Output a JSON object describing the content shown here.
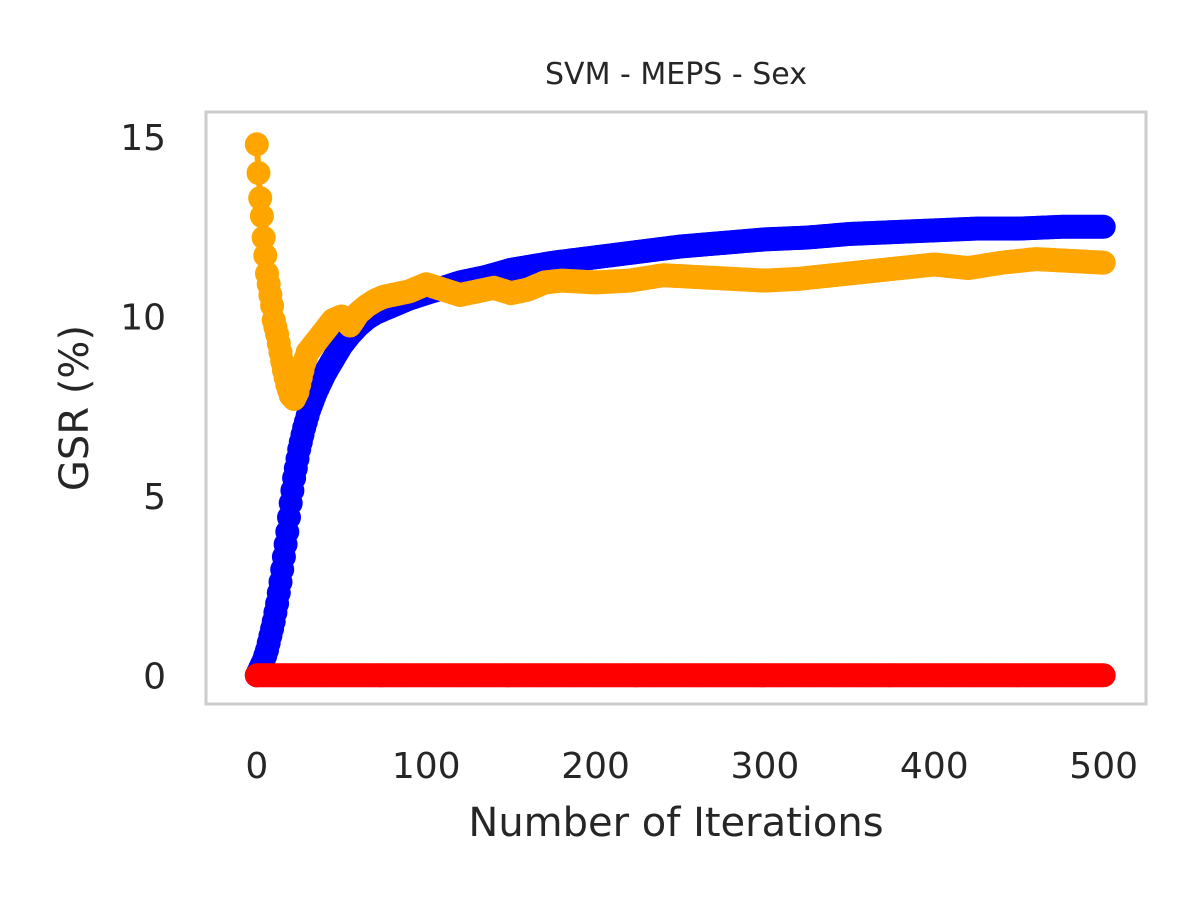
{
  "chart_data": {
    "type": "line",
    "title": "SVM - MEPS - Sex",
    "xlabel": "Number of Iterations",
    "ylabel": "GSR (%)",
    "xlim": [
      -30,
      525
    ],
    "ylim": [
      -0.8,
      15.7
    ],
    "xticks": [
      0,
      100,
      200,
      300,
      400,
      500
    ],
    "yticks": [
      0,
      5,
      10,
      15
    ],
    "xtick_labels": [
      "0",
      "100",
      "200",
      "300",
      "400",
      "500"
    ],
    "ytick_labels": [
      "0",
      "5",
      "10",
      "15"
    ],
    "grid": false,
    "legend": "none",
    "series": [
      {
        "color": "#0000ff",
        "x": [
          0,
          2,
          4,
          6,
          8,
          10,
          12,
          14,
          16,
          18,
          20,
          22,
          25,
          28,
          31,
          35,
          40,
          45,
          50,
          55,
          60,
          65,
          70,
          80,
          90,
          100,
          110,
          120,
          135,
          150,
          175,
          200,
          225,
          250,
          275,
          300,
          325,
          350,
          375,
          400,
          425,
          450,
          475,
          500
        ],
        "y": [
          0.0,
          0.2,
          0.4,
          0.7,
          1.1,
          1.5,
          2.0,
          2.6,
          3.3,
          4.0,
          4.8,
          5.5,
          6.3,
          6.9,
          7.4,
          7.9,
          8.4,
          8.8,
          9.2,
          9.5,
          9.75,
          9.95,
          10.1,
          10.3,
          10.5,
          10.65,
          10.8,
          10.95,
          11.1,
          11.3,
          11.5,
          11.65,
          11.8,
          11.95,
          12.05,
          12.15,
          12.2,
          12.3,
          12.35,
          12.4,
          12.45,
          12.45,
          12.5,
          12.5
        ]
      },
      {
        "color": "#ffa500",
        "x": [
          0,
          1,
          2,
          3,
          4,
          5,
          6,
          7,
          8,
          9,
          10,
          12,
          14,
          16,
          18,
          20,
          22,
          24,
          26,
          28,
          30,
          35,
          40,
          45,
          50,
          55,
          60,
          65,
          70,
          75,
          80,
          90,
          100,
          110,
          120,
          130,
          140,
          150,
          160,
          170,
          180,
          200,
          220,
          240,
          260,
          280,
          300,
          320,
          340,
          360,
          380,
          400,
          420,
          440,
          460,
          480,
          500
        ],
        "y": [
          14.8,
          14.0,
          13.3,
          12.8,
          12.2,
          11.7,
          11.2,
          10.9,
          10.6,
          10.3,
          9.9,
          9.5,
          9.0,
          8.5,
          8.1,
          7.8,
          7.7,
          7.9,
          8.3,
          8.7,
          9.0,
          9.3,
          9.6,
          9.9,
          10.0,
          9.75,
          10.1,
          10.3,
          10.45,
          10.55,
          10.6,
          10.7,
          10.9,
          10.75,
          10.6,
          10.7,
          10.8,
          10.65,
          10.75,
          10.95,
          11.0,
          10.95,
          11.0,
          11.15,
          11.1,
          11.05,
          11.0,
          11.05,
          11.15,
          11.25,
          11.35,
          11.45,
          11.35,
          11.5,
          11.6,
          11.55,
          11.5
        ]
      },
      {
        "color": "#ff0000",
        "x": [
          0,
          50,
          100,
          150,
          200,
          250,
          300,
          350,
          400,
          450,
          500
        ],
        "y": [
          0,
          0,
          0,
          0,
          0,
          0,
          0,
          0,
          0,
          0,
          0
        ]
      }
    ]
  }
}
